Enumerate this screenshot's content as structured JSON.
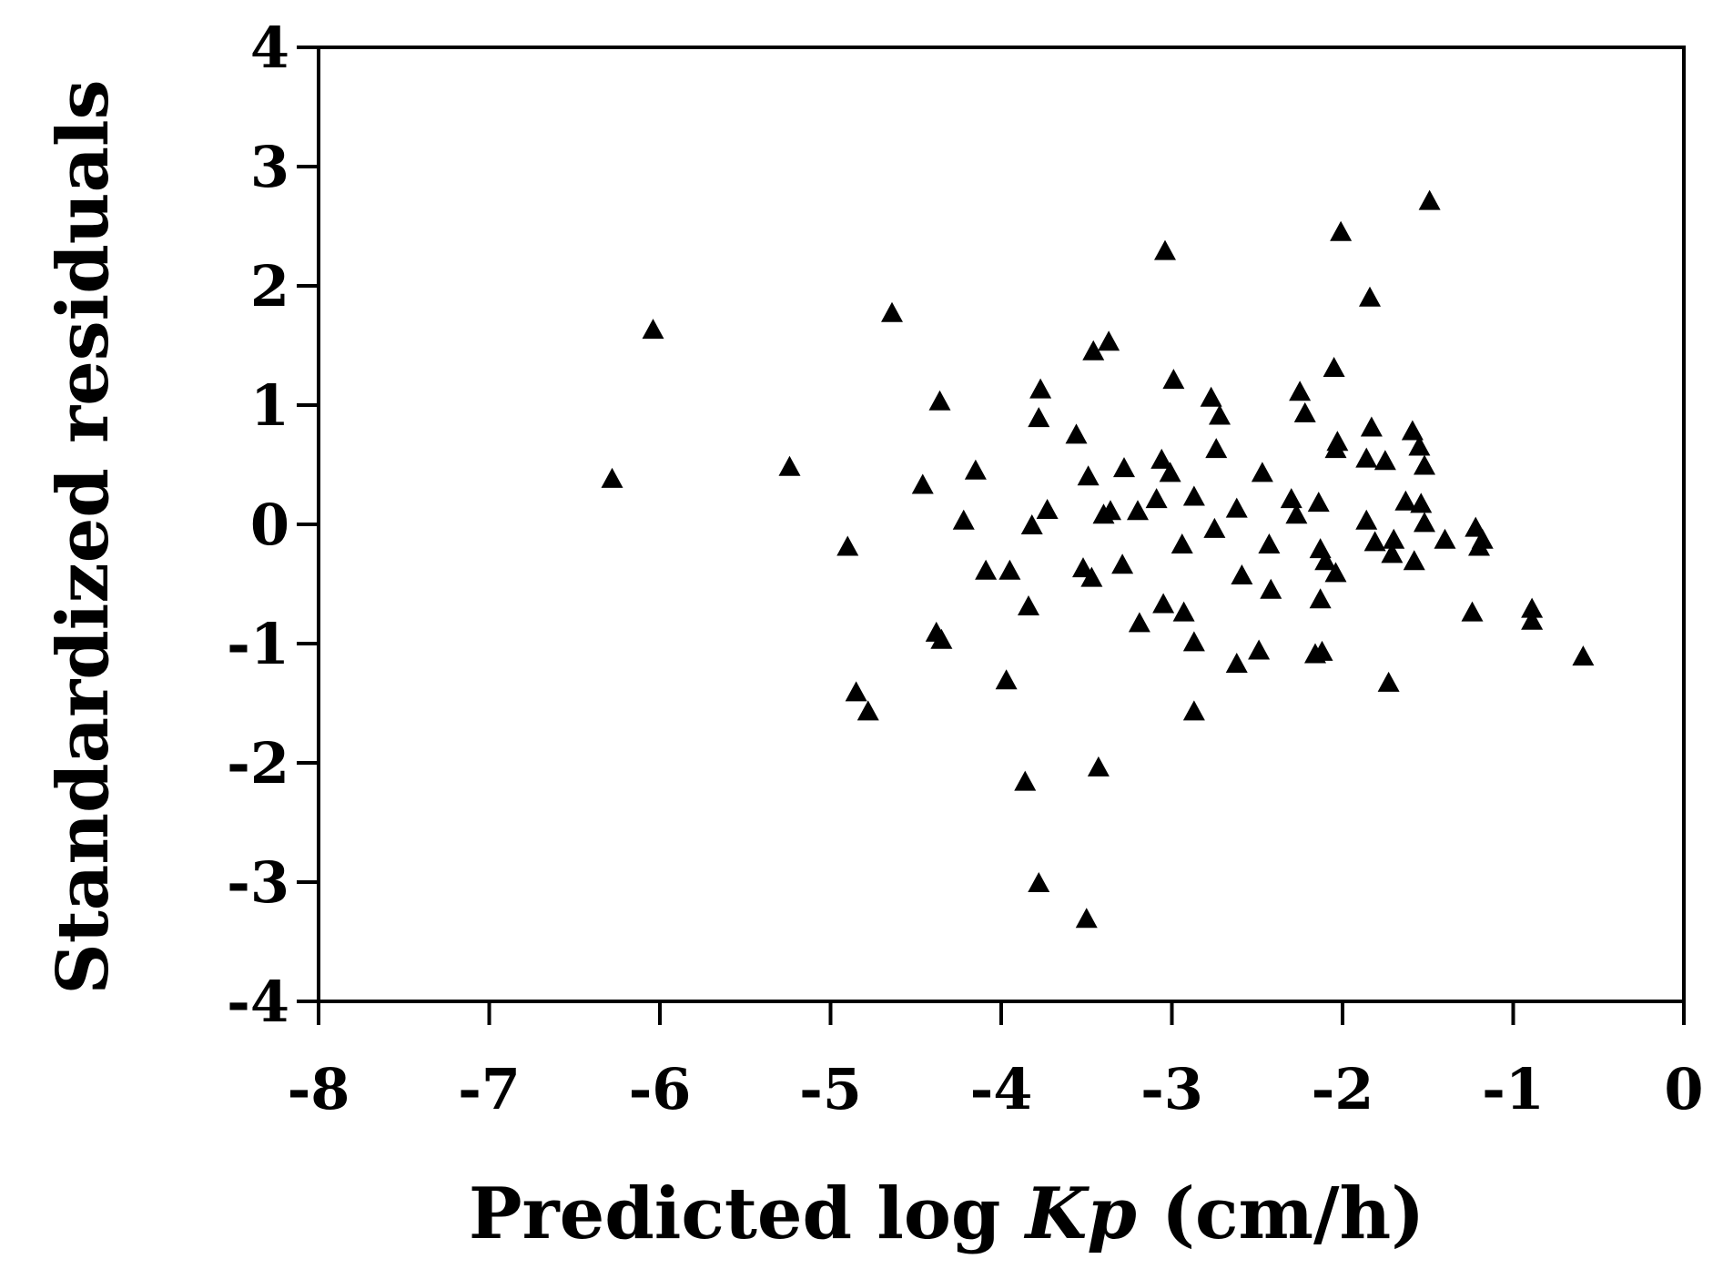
{
  "chart_data": {
    "type": "scatter",
    "title": "",
    "xlabel": {
      "prefix": "Predicted log ",
      "italic": "Kp",
      "suffix": " (cm/h)"
    },
    "ylabel": "Standardized residuals",
    "xlim": [
      -8,
      0
    ],
    "ylim": [
      -4,
      4
    ],
    "xticks": [
      -8,
      -7,
      -6,
      -5,
      -4,
      -3,
      -2,
      -1,
      0
    ],
    "yticks": [
      -4,
      -3,
      -2,
      -1,
      0,
      1,
      2,
      3,
      4
    ],
    "xtick_labels": [
      "-8",
      "-7",
      "-6",
      "-5",
      "-4",
      "-3",
      "-2",
      "-1",
      "0"
    ],
    "ytick_labels": [
      "-4",
      "-3",
      "-2",
      "-1",
      "0",
      "1",
      "2",
      "3",
      "4"
    ],
    "grid": false,
    "legend": "none",
    "marker": "filled-triangle",
    "marker_color": "#000000",
    "series": [
      {
        "points": [
          [
            -6.28,
            0.37
          ],
          [
            -6.04,
            1.62
          ],
          [
            -5.24,
            0.47
          ],
          [
            -4.9,
            -0.2
          ],
          [
            -4.85,
            -1.42
          ],
          [
            -4.78,
            -1.58
          ],
          [
            -4.64,
            1.76
          ],
          [
            -4.46,
            0.32
          ],
          [
            -4.36,
            1.02
          ],
          [
            -4.38,
            -0.92
          ],
          [
            -4.35,
            -0.98
          ],
          [
            -4.22,
            0.02
          ],
          [
            -4.15,
            0.44
          ],
          [
            -4.09,
            -0.4
          ],
          [
            -3.97,
            -1.32
          ],
          [
            -3.95,
            -0.4
          ],
          [
            -3.86,
            -2.17
          ],
          [
            -3.84,
            -0.7
          ],
          [
            -3.82,
            -0.02
          ],
          [
            -3.78,
            0.88
          ],
          [
            -3.77,
            1.12
          ],
          [
            -3.78,
            -3.02
          ],
          [
            -3.73,
            0.11
          ],
          [
            -3.56,
            0.74
          ],
          [
            -3.52,
            -0.38
          ],
          [
            -3.49,
            0.39
          ],
          [
            -3.47,
            -0.46
          ],
          [
            -3.46,
            1.44
          ],
          [
            -3.5,
            -3.32
          ],
          [
            -3.43,
            -2.05
          ],
          [
            -3.4,
            0.07
          ],
          [
            -3.37,
            1.52
          ],
          [
            -3.36,
            0.1
          ],
          [
            -3.28,
            0.46
          ],
          [
            -3.29,
            -0.35
          ],
          [
            -3.2,
            0.1
          ],
          [
            -3.19,
            -0.84
          ],
          [
            -3.09,
            0.2
          ],
          [
            -3.06,
            0.53
          ],
          [
            -3.04,
            2.28
          ],
          [
            -3.05,
            -0.68
          ],
          [
            -3.01,
            0.42
          ],
          [
            -2.99,
            1.2
          ],
          [
            -2.94,
            -0.18
          ],
          [
            -2.93,
            -0.75
          ],
          [
            -2.87,
            0.22
          ],
          [
            -2.87,
            -1.0
          ],
          [
            -2.87,
            -1.58
          ],
          [
            -2.77,
            1.05
          ],
          [
            -2.75,
            -0.05
          ],
          [
            -2.74,
            0.62
          ],
          [
            -2.72,
            0.9
          ],
          [
            -2.62,
            0.12
          ],
          [
            -2.62,
            -1.18
          ],
          [
            -2.59,
            -0.44
          ],
          [
            -2.49,
            -1.07
          ],
          [
            -2.47,
            0.42
          ],
          [
            -2.43,
            -0.18
          ],
          [
            -2.42,
            -0.56
          ],
          [
            -2.3,
            0.2
          ],
          [
            -2.27,
            0.07
          ],
          [
            -2.25,
            1.1
          ],
          [
            -2.22,
            0.92
          ],
          [
            -2.16,
            -1.1
          ],
          [
            -2.14,
            0.17
          ],
          [
            -2.13,
            -0.64
          ],
          [
            -2.13,
            -0.22
          ],
          [
            -2.12,
            -1.08
          ],
          [
            -2.1,
            -0.32
          ],
          [
            -2.05,
            1.3
          ],
          [
            -2.04,
            0.62
          ],
          [
            -2.03,
            0.68
          ],
          [
            -2.04,
            -0.42
          ],
          [
            -2.01,
            2.44
          ],
          [
            -1.86,
            0.54
          ],
          [
            -1.86,
            0.02
          ],
          [
            -1.84,
            1.89
          ],
          [
            -1.83,
            0.8
          ],
          [
            -1.81,
            -0.16
          ],
          [
            -1.75,
            0.52
          ],
          [
            -1.73,
            -1.34
          ],
          [
            -1.71,
            -0.26
          ],
          [
            -1.7,
            -0.14
          ],
          [
            -1.63,
            0.18
          ],
          [
            -1.59,
            0.77
          ],
          [
            -1.58,
            -0.32
          ],
          [
            -1.55,
            0.64
          ],
          [
            -1.54,
            0.16
          ],
          [
            -1.52,
            0.48
          ],
          [
            -1.52,
            0.0
          ],
          [
            -1.49,
            2.7
          ],
          [
            -1.4,
            -0.14
          ],
          [
            -1.24,
            -0.75
          ],
          [
            -1.22,
            -0.04
          ],
          [
            -1.2,
            -0.2
          ],
          [
            -1.18,
            -0.14
          ],
          [
            -0.89,
            -0.72
          ],
          [
            -0.89,
            -0.82
          ],
          [
            -0.59,
            -1.12
          ]
        ]
      }
    ]
  }
}
